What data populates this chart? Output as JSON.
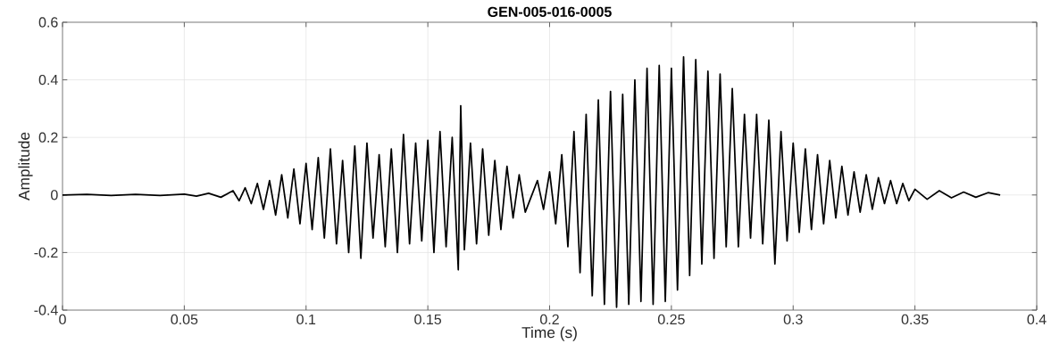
{
  "chart_data": {
    "type": "line",
    "title": "GEN-005-016-0005",
    "xlabel": "Time (s)",
    "ylabel": "Amplitude",
    "xlim": [
      0,
      0.4
    ],
    "ylim": [
      -0.4,
      0.6
    ],
    "xticks": [
      0,
      0.05,
      0.1,
      0.15,
      0.2,
      0.25,
      0.3,
      0.35,
      0.4
    ],
    "yticks": [
      -0.4,
      -0.2,
      0,
      0.2,
      0.4,
      0.6
    ],
    "grid": true,
    "marker": "none",
    "line_style": "solid",
    "series": [
      {
        "color": "#000000",
        "x": [
          0,
          0.01,
          0.02,
          0.03,
          0.04,
          0.05,
          0.055,
          0.06,
          0.065,
          0.07,
          0.0725,
          0.075,
          0.0775,
          0.08,
          0.0825,
          0.085,
          0.0875,
          0.09,
          0.0925,
          0.095,
          0.0975,
          0.1,
          0.1025,
          0.105,
          0.1075,
          0.11,
          0.1125,
          0.115,
          0.1175,
          0.12,
          0.1225,
          0.125,
          0.1275,
          0.13,
          0.1325,
          0.135,
          0.1375,
          0.14,
          0.1425,
          0.145,
          0.1475,
          0.15,
          0.1525,
          0.155,
          0.1575,
          0.16,
          0.1625,
          0.1635,
          0.165,
          0.1675,
          0.17,
          0.1725,
          0.175,
          0.1775,
          0.18,
          0.1825,
          0.185,
          0.1875,
          0.19,
          0.195,
          0.1975,
          0.2,
          0.2025,
          0.205,
          0.2075,
          0.21,
          0.2125,
          0.215,
          0.2175,
          0.22,
          0.2225,
          0.225,
          0.2275,
          0.23,
          0.2325,
          0.235,
          0.2375,
          0.24,
          0.2425,
          0.245,
          0.2475,
          0.25,
          0.2525,
          0.255,
          0.2575,
          0.26,
          0.2625,
          0.265,
          0.2675,
          0.27,
          0.2725,
          0.275,
          0.2775,
          0.28,
          0.2825,
          0.285,
          0.2875,
          0.29,
          0.2925,
          0.295,
          0.2975,
          0.3,
          0.3025,
          0.305,
          0.3075,
          0.31,
          0.3125,
          0.315,
          0.3175,
          0.32,
          0.3225,
          0.325,
          0.3275,
          0.33,
          0.3325,
          0.335,
          0.3375,
          0.34,
          0.3425,
          0.345,
          0.3475,
          0.35,
          0.355,
          0.36,
          0.365,
          0.37,
          0.375,
          0.38,
          0.385
        ],
        "values": [
          0,
          0.002,
          -0.002,
          0.002,
          -0.002,
          0.003,
          -0.004,
          0.006,
          -0.008,
          0.015,
          -0.02,
          0.025,
          -0.03,
          0.04,
          -0.05,
          0.05,
          -0.07,
          0.07,
          -0.08,
          0.09,
          -0.1,
          0.11,
          -0.12,
          0.13,
          -0.15,
          0.16,
          -0.17,
          0.12,
          -0.2,
          0.17,
          -0.22,
          0.18,
          -0.15,
          0.14,
          -0.18,
          0.16,
          -0.2,
          0.21,
          -0.17,
          0.18,
          -0.16,
          0.19,
          -0.2,
          0.22,
          -0.18,
          0.2,
          -0.26,
          0.31,
          -0.19,
          0.18,
          -0.17,
          0.16,
          -0.14,
          0.12,
          -0.12,
          0.1,
          -0.08,
          0.07,
          -0.06,
          0.05,
          -0.05,
          0.08,
          -0.1,
          0.14,
          -0.18,
          0.22,
          -0.27,
          0.28,
          -0.35,
          0.33,
          -0.38,
          0.36,
          -0.39,
          0.35,
          -0.38,
          0.4,
          -0.37,
          0.44,
          -0.38,
          0.45,
          -0.37,
          0.44,
          -0.33,
          0.48,
          -0.28,
          0.47,
          -0.24,
          0.43,
          -0.22,
          0.42,
          -0.18,
          0.37,
          -0.18,
          0.28,
          -0.15,
          0.28,
          -0.17,
          0.26,
          -0.24,
          0.22,
          -0.16,
          0.18,
          -0.13,
          0.16,
          -0.12,
          0.14,
          -0.1,
          0.12,
          -0.08,
          0.1,
          -0.07,
          0.08,
          -0.06,
          0.07,
          -0.05,
          0.06,
          -0.03,
          0.05,
          -0.03,
          0.04,
          -0.02,
          0.02,
          -0.015,
          0.015,
          -0.01,
          0.01,
          -0.008,
          0.008,
          0
        ]
      }
    ]
  }
}
